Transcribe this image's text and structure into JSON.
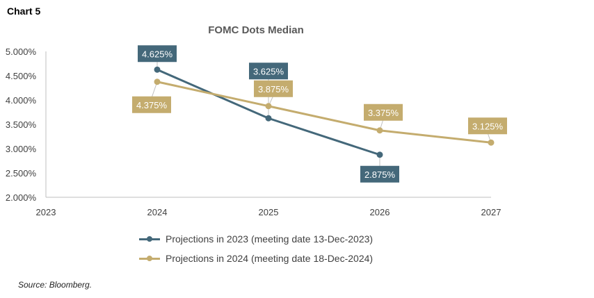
{
  "chart_label": "Chart 5",
  "source": "Source:  Bloomberg.",
  "chart_data": {
    "type": "line",
    "title": "FOMC Dots Median",
    "x_ticks": [
      "2023",
      "2024",
      "2025",
      "2026",
      "2027"
    ],
    "y_ticks": [
      "5.000%",
      "4.500%",
      "4.000%",
      "3.500%",
      "3.000%",
      "2.500%",
      "2.000%"
    ],
    "xlim": [
      2023,
      2027
    ],
    "ylim": [
      2.0,
      5.0
    ],
    "grid": false,
    "legend_position": "bottom",
    "series": [
      {
        "name": "Projections in 2023 (meeting date 13-Dec-2023)",
        "color": "#44687a",
        "x": [
          2024,
          2025,
          2026
        ],
        "y": [
          4.625,
          3.625,
          2.875
        ],
        "labels": [
          "4.625%",
          "3.625%",
          "2.875%"
        ]
      },
      {
        "name": "Projections in 2024 (meeting date 18-Dec-2024)",
        "color": "#c4ac6e",
        "x": [
          2024,
          2025,
          2026,
          2027
        ],
        "y": [
          4.375,
          3.875,
          3.375,
          3.125
        ],
        "labels": [
          "4.375%",
          "3.875%",
          "3.375%",
          "3.125%"
        ]
      }
    ]
  }
}
